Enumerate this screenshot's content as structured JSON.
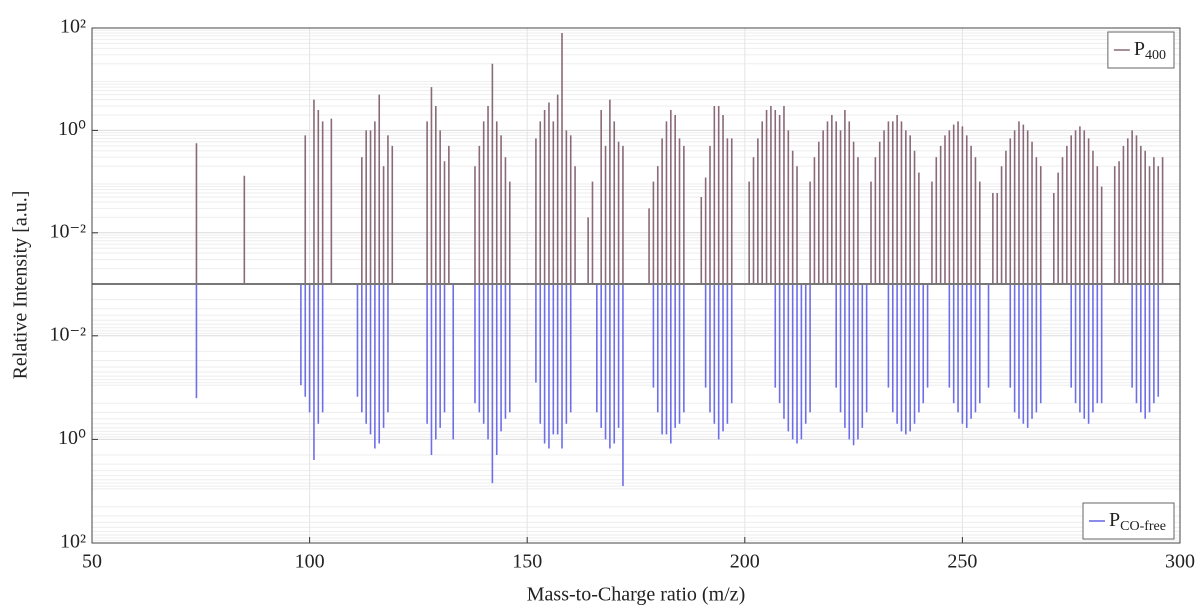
{
  "chart_data": {
    "type": "mirror-stem",
    "x_label": "Mass-to-Charge ratio (m/z)",
    "y_label": "Relative Intensity [a.u.]",
    "xlim": [
      50,
      300
    ],
    "xticks": [
      50,
      100,
      150,
      200,
      250,
      300
    ],
    "ylim": [
      0.001,
      100
    ],
    "yticks": [
      {
        "value": 100,
        "label": "10²"
      },
      {
        "value": 1,
        "label": "10⁰"
      },
      {
        "value": 0.01,
        "label": "10⁻²"
      }
    ],
    "y2lim": [
      0.001,
      100
    ],
    "y2ticks": [
      {
        "value": 0.01,
        "label": "10⁻²"
      },
      {
        "value": 1,
        "label": "10⁰"
      },
      {
        "value": 100,
        "label": "10²"
      }
    ],
    "log_scale": true,
    "grid": true,
    "series": [
      {
        "name": "P",
        "name_subscript": "400",
        "color": "#8a6a78",
        "legend": "upper right",
        "x": [
          74,
          85,
          99,
          101,
          102,
          103,
          105,
          112,
          113,
          114,
          115,
          116,
          117,
          118,
          119,
          127,
          128,
          129,
          130,
          131,
          132,
          138,
          139,
          140,
          141,
          142,
          143,
          144,
          145,
          146,
          152,
          153,
          154,
          155,
          156,
          157,
          158,
          159,
          160,
          161,
          164,
          165,
          167,
          168,
          169,
          170,
          171,
          172,
          178,
          179,
          180,
          181,
          182,
          183,
          184,
          185,
          186,
          190,
          191,
          192,
          193,
          194,
          195,
          196,
          197,
          201,
          202,
          203,
          204,
          205,
          206,
          207,
          208,
          209,
          210,
          211,
          212,
          215,
          216,
          217,
          218,
          219,
          220,
          221,
          222,
          223,
          224,
          225,
          226,
          229,
          230,
          231,
          232,
          233,
          234,
          235,
          236,
          237,
          238,
          239,
          240,
          243,
          244,
          245,
          246,
          247,
          248,
          249,
          250,
          251,
          252,
          253,
          254,
          257,
          258,
          259,
          260,
          261,
          262,
          263,
          264,
          265,
          266,
          267,
          268,
          271,
          272,
          273,
          274,
          275,
          276,
          277,
          278,
          279,
          280,
          281,
          282,
          285,
          286,
          287,
          288,
          289,
          290,
          291,
          292,
          293,
          294,
          295,
          296
        ],
        "values": [
          0.56,
          0.13,
          0.8,
          4,
          2.5,
          1.5,
          1.7,
          0.3,
          1,
          1,
          1.5,
          5,
          0.2,
          0.8,
          0.5,
          1.5,
          7,
          3,
          1,
          0.25,
          0.5,
          0.2,
          0.5,
          1.5,
          3,
          20,
          1.5,
          0.8,
          0.3,
          0.1,
          0.7,
          1.5,
          2.5,
          3.5,
          1.5,
          5,
          80,
          1,
          0.8,
          0.2,
          0.02,
          0.1,
          2.5,
          0.5,
          4,
          1.5,
          0.6,
          0.5,
          0.03,
          0.1,
          0.2,
          0.7,
          1.5,
          2.5,
          2,
          0.7,
          0.5,
          0.05,
          0.12,
          0.5,
          3,
          3,
          2,
          0.7,
          0.7,
          0.1,
          0.3,
          0.7,
          1.5,
          2.5,
          3,
          2.5,
          2,
          3,
          1,
          0.4,
          0.2,
          0.1,
          0.3,
          0.6,
          1,
          1.5,
          2,
          1.5,
          1,
          2.5,
          1.5,
          0.6,
          0.3,
          0.1,
          0.3,
          0.6,
          1,
          1.5,
          1.5,
          2,
          1.5,
          1,
          0.8,
          0.4,
          0.15,
          0.1,
          0.3,
          0.5,
          0.8,
          1,
          1.3,
          1.5,
          1.2,
          0.8,
          0.5,
          0.3,
          0.1,
          0.06,
          0.06,
          0.2,
          0.4,
          0.7,
          1,
          1.5,
          1.3,
          1,
          0.6,
          0.3,
          0.2,
          0.06,
          0.15,
          0.3,
          0.5,
          0.8,
          1,
          1.2,
          1,
          0.7,
          0.4,
          0.2,
          0.08,
          0.2,
          0.25,
          0.5,
          0.7,
          1,
          0.8,
          0.5,
          0.4,
          0.2,
          0.3,
          0.2,
          0.3
        ]
      },
      {
        "name": "P",
        "name_subscript": "CO-free",
        "color": "#6e6ee8",
        "axis": "y2",
        "legend": "lower right",
        "x": [
          74,
          98,
          99,
          100,
          101,
          102,
          103,
          111,
          112,
          113,
          114,
          115,
          116,
          117,
          118,
          127,
          128,
          129,
          130,
          131,
          133,
          138,
          139,
          140,
          141,
          142,
          143,
          144,
          145,
          146,
          152,
          153,
          154,
          155,
          156,
          157,
          158,
          159,
          160,
          166,
          167,
          168,
          169,
          170,
          171,
          172,
          179,
          180,
          181,
          182,
          183,
          184,
          185,
          186,
          191,
          192,
          193,
          194,
          195,
          196,
          197,
          207,
          208,
          209,
          210,
          211,
          212,
          213,
          214,
          215,
          221,
          222,
          223,
          224,
          225,
          226,
          227,
          228,
          233,
          234,
          235,
          236,
          237,
          238,
          239,
          240,
          241,
          242,
          247,
          248,
          249,
          250,
          251,
          252,
          253,
          254,
          256,
          261,
          262,
          263,
          264,
          265,
          266,
          267,
          268,
          275,
          276,
          277,
          278,
          279,
          280,
          281,
          282,
          289,
          290,
          291,
          292,
          293,
          294,
          295
        ],
        "values": [
          0.16,
          0.09,
          0.15,
          0.3,
          2.5,
          0.5,
          0.3,
          0.15,
          0.3,
          0.5,
          0.8,
          1.5,
          1.2,
          0.6,
          0.3,
          0.5,
          2,
          1,
          0.6,
          0.3,
          1,
          0.2,
          0.3,
          0.5,
          1,
          7,
          2,
          0.7,
          0.4,
          0.3,
          0.08,
          0.5,
          1.2,
          1.5,
          0.8,
          0.8,
          1.5,
          0.5,
          0.3,
          0.3,
          0.6,
          1,
          1.5,
          1.2,
          0.6,
          8,
          0.1,
          0.3,
          0.8,
          0.8,
          1.2,
          0.6,
          0.5,
          0.3,
          0.1,
          0.3,
          0.5,
          1,
          0.7,
          0.5,
          0.2,
          0.1,
          0.2,
          0.4,
          0.7,
          1,
          1.2,
          1,
          0.5,
          0.3,
          0.1,
          0.3,
          0.6,
          1,
          1.3,
          1,
          0.6,
          0.3,
          0.1,
          0.3,
          0.5,
          0.7,
          0.8,
          0.7,
          0.5,
          0.3,
          0.2,
          0.1,
          0.1,
          0.2,
          0.3,
          0.5,
          0.6,
          0.4,
          0.3,
          0.2,
          0.1,
          0.1,
          0.3,
          0.4,
          0.5,
          0.6,
          0.4,
          0.3,
          0.2,
          0.1,
          0.2,
          0.3,
          0.4,
          0.5,
          0.3,
          0.2,
          0.2,
          0.1,
          0.2,
          0.3,
          0.4,
          0.3,
          0.2,
          0.15
        ]
      }
    ]
  }
}
